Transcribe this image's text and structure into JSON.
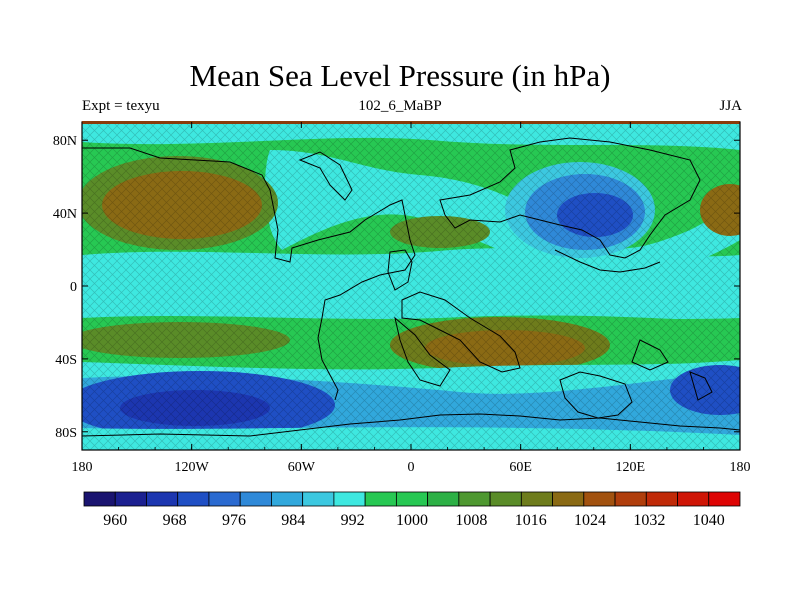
{
  "title": "Mean Sea Level Pressure (in hPa)",
  "subtitle_left": "Expt = texyu",
  "subtitle_center": "102_6_MaBP",
  "subtitle_right": "JJA",
  "x_ticks": [
    "180",
    "120W",
    "60W",
    "0",
    "60E",
    "120E",
    "180"
  ],
  "y_ticks": [
    "80N",
    "40N",
    "0",
    "40S",
    "80S"
  ],
  "colorbar": {
    "labels": [
      "960",
      "968",
      "976",
      "984",
      "992",
      "1000",
      "1008",
      "1016",
      "1024",
      "1032",
      "1040"
    ],
    "colors": [
      "#1a1470",
      "#1b2090",
      "#1c36b0",
      "#1f4fc4",
      "#2a6ad0",
      "#2f89d8",
      "#31a8dc",
      "#3cc8e0",
      "#3ee8e0",
      "#27c853",
      "#27c853",
      "#2cb045",
      "#4e9830",
      "#5a8c28",
      "#6e7c1c",
      "#8a6a14",
      "#a2520f",
      "#b03e0c",
      "#c02a08",
      "#cf1506",
      "#de0404"
    ]
  }
}
